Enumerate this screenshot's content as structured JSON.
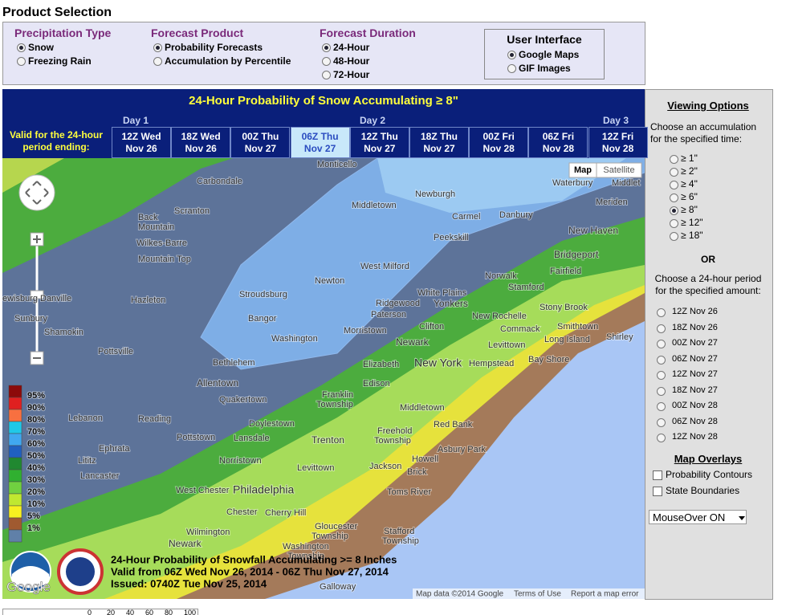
{
  "header": {
    "title": "Product Selection"
  },
  "selection": {
    "groups": [
      {
        "title": "Precipitation Type",
        "options": [
          {
            "label": "Snow",
            "checked": true
          },
          {
            "label": "Freezing Rain",
            "checked": false
          }
        ]
      },
      {
        "title": "Forecast Product",
        "options": [
          {
            "label": "Probability Forecasts",
            "checked": true
          },
          {
            "label": "Accumulation by Percentile",
            "checked": false
          }
        ]
      },
      {
        "title": "Forecast Duration",
        "options": [
          {
            "label": "24-Hour",
            "checked": true
          },
          {
            "label": "48-Hour",
            "checked": false
          },
          {
            "label": "72-Hour",
            "checked": false
          }
        ]
      }
    ],
    "interface": {
      "title": "User Interface",
      "options": [
        {
          "label": "Google Maps",
          "checked": true
        },
        {
          "label": "GIF Images",
          "checked": false
        }
      ]
    }
  },
  "map": {
    "title": "24-Hour Probability of Snow Accumulating ≥ 8\"",
    "valid_label": [
      "Valid for the 24-hour",
      "period ending:"
    ],
    "days": [
      "Day 1",
      "Day 2",
      "Day 3"
    ],
    "periods": [
      {
        "line1": "12Z Wed",
        "line2": "Nov 26",
        "selected": false
      },
      {
        "line1": "18Z Wed",
        "line2": "Nov 26",
        "selected": false
      },
      {
        "line1": "00Z Thu",
        "line2": "Nov 27",
        "selected": false
      },
      {
        "line1": "06Z Thu",
        "line2": "Nov 27",
        "selected": true
      },
      {
        "line1": "12Z Thu",
        "line2": "Nov 27",
        "selected": false
      },
      {
        "line1": "18Z Thu",
        "line2": "Nov 27",
        "selected": false
      },
      {
        "line1": "00Z Fri",
        "line2": "Nov 28",
        "selected": false
      },
      {
        "line1": "06Z Fri",
        "line2": "Nov 28",
        "selected": false
      },
      {
        "line1": "12Z Fri",
        "line2": "Nov 28",
        "selected": false
      }
    ],
    "buttons": [
      "Map",
      "Satellite"
    ],
    "legend": [
      "95%",
      "90%",
      "80%",
      "70%",
      "60%",
      "50%",
      "40%",
      "30%",
      "20%",
      "10%",
      "5%",
      "1%"
    ],
    "places": [
      "Monticello",
      "Carbondale",
      "Waterbury",
      "Middlet",
      "Newburgh",
      "Middletown",
      "Carmel",
      "Danbury",
      "Scranton",
      "Back",
      "Mountain",
      "Meriden",
      "Peekskill",
      "New Haven",
      "Wilkes-Barre",
      "Mountain Top",
      "West Milford",
      "Bridgeport",
      "Norwalk",
      "Fairfield",
      "Stamford",
      "Newton",
      "ewisburg",
      "Danville",
      "Hazleton",
      "Stroudsburg",
      "White Plains",
      "Yonkers",
      "Ridgewood",
      "Stony Brook",
      "Sunbury",
      "Bangor",
      "Paterson",
      "New Rochelle",
      "Shamokin",
      "Morristown",
      "Clifton",
      "Commack",
      "Smithtown",
      "Washington",
      "Long Island",
      "Shirley",
      "Levittown",
      "Pottsville",
      "Newark",
      "Bethlehem",
      "Elizabeth",
      "New York",
      "Hempstead",
      "Bay Shore",
      "Allentown",
      "Edison",
      "Quakertown",
      "Franklin",
      "Township",
      "Lebanon",
      "Reading",
      "Doylestown",
      "Middletown",
      "Red Bank",
      "Pottstown",
      "Lansdale",
      "Freehold",
      "Township",
      "Trenton",
      "Asbury Park",
      "Ephrata",
      "Lititz",
      "Norristown",
      "Howell",
      "Jackson",
      "Levittown",
      "Brick",
      "Lancaster",
      "Philadelphia",
      "West Chester",
      "Toms River",
      "Chester",
      "Cherry Hill",
      "Gloucester",
      "Township",
      "Stafford",
      "Township",
      "Wilmington",
      "Newark",
      "Washington",
      "Township",
      "Galloway"
    ],
    "caption": [
      "24-Hour Probability of Snowfall Accumulating >= 8 Inches",
      "Valid from 06Z Wed Nov 26, 2014 - 06Z Thu Nov 27, 2014",
      "Issued: 0740Z Tue Nov 25, 2014"
    ],
    "logo_text": "Google",
    "attribution": [
      "Map data ©2014 Google",
      "Terms of Use",
      "Report a map error"
    ]
  },
  "sidebar": {
    "title": "Viewing Options",
    "accumulation_prompt": [
      "Choose an accumulation",
      "for the specified time:"
    ],
    "accumulations": [
      {
        "label": "≥ 1\"",
        "checked": false
      },
      {
        "label": "≥ 2\"",
        "checked": false
      },
      {
        "label": "≥ 4\"",
        "checked": false
      },
      {
        "label": "≥ 6\"",
        "checked": false
      },
      {
        "label": "≥ 8\"",
        "checked": true
      },
      {
        "label": "≥ 12\"",
        "checked": false
      },
      {
        "label": "≥ 18\"",
        "checked": false
      }
    ],
    "or": "OR",
    "period_prompt": [
      "Choose a 24-hour period",
      "for the specified amount:"
    ],
    "periods": [
      {
        "label": "12Z Nov 26",
        "checked": false
      },
      {
        "label": "18Z Nov 26",
        "checked": false
      },
      {
        "label": "00Z Nov 27",
        "checked": false
      },
      {
        "label": "06Z Nov 27",
        "checked": false
      },
      {
        "label": "12Z Nov 27",
        "checked": false
      },
      {
        "label": "18Z Nov 27",
        "checked": false
      },
      {
        "label": "00Z Nov 28",
        "checked": false
      },
      {
        "label": "06Z Nov 28",
        "checked": false
      },
      {
        "label": "12Z Nov 28",
        "checked": false
      }
    ],
    "overlays_title": "Map Overlays",
    "overlays": [
      {
        "label": "Probability Contours",
        "checked": false
      },
      {
        "label": "State Boundaries",
        "checked": false
      }
    ],
    "select": "MouseOver ON"
  },
  "scale": {
    "labels": [
      "0",
      "20",
      "40",
      "60",
      "80",
      "100"
    ]
  }
}
